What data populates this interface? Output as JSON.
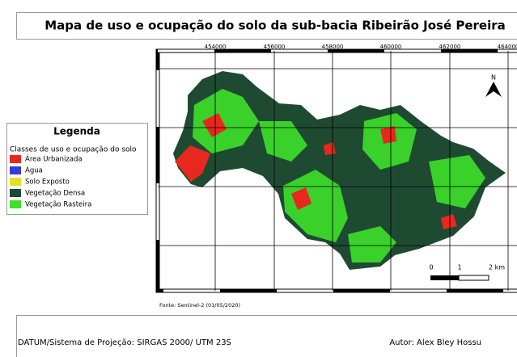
{
  "header": {
    "title": "Mapa de uso e ocupação do solo da sub-bacia Ribeirão José Pereira"
  },
  "legend": {
    "title": "Legenda",
    "subtitle": "Classes de uso e ocupação do solo",
    "items": [
      {
        "label": "Área Urbanizada",
        "color": "#e8281e"
      },
      {
        "label": "Água",
        "color": "#3a3ad6"
      },
      {
        "label": "Solo Exposto",
        "color": "#e6df2c"
      },
      {
        "label": "Vegetação Densa",
        "color": "#1f4a32"
      },
      {
        "label": "Vegetação Rasteira",
        "color": "#3ee02a"
      }
    ]
  },
  "map": {
    "grid_labels": [
      "454000",
      "456000",
      "458000",
      "460000",
      "462000",
      "464000"
    ],
    "north": "N",
    "scale_labels": [
      "0",
      "1",
      "2 km"
    ]
  },
  "source": "Fonte: Sentinel-2 (01/05/2020)",
  "footer": {
    "datum": "DATUM/Sistema de Projeção: SIRGAS 2000/ UTM 23S",
    "author": "Autor: Alex Bley Hossu"
  }
}
